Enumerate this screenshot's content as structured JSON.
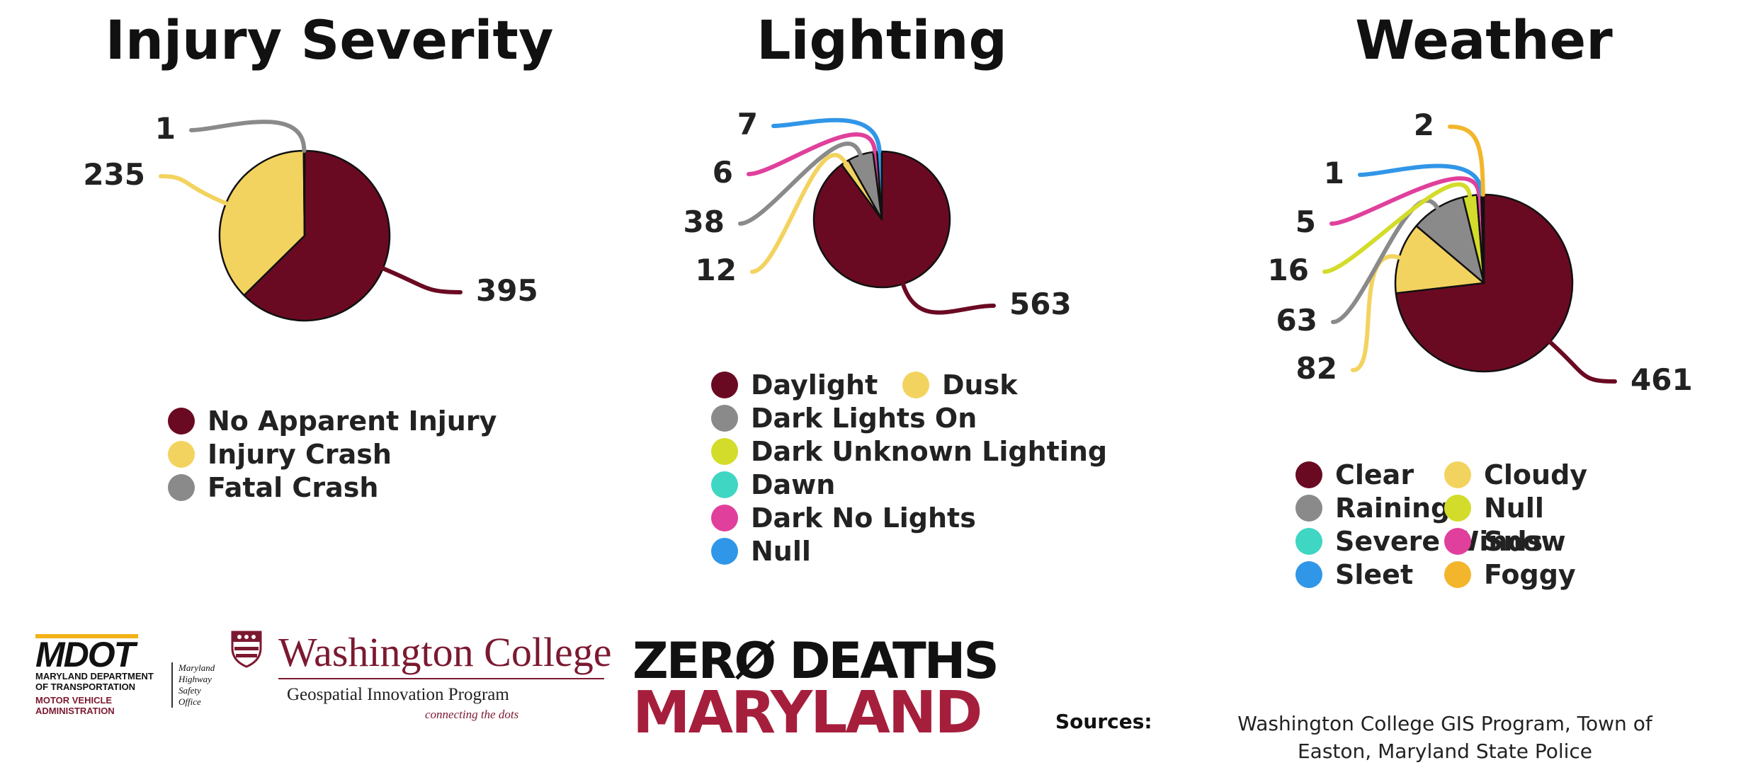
{
  "chart_data": [
    {
      "type": "pie",
      "title": "Injury Severity",
      "categories": [
        "No Apparent Injury",
        "Injury Crash",
        "Fatal Crash"
      ],
      "values": [
        395,
        235,
        1
      ],
      "data_labels": [
        "395",
        "235",
        "1"
      ],
      "colors": [
        "#6a0a22",
        "#f3d35f",
        "#8a8a8a"
      ],
      "legend": {
        "placement": "bottom",
        "columns": 1
      }
    },
    {
      "type": "pie",
      "title": "Lighting",
      "categories": [
        "Daylight",
        "Dusk",
        "Dark Lights On",
        "Dark Unknown Lighting",
        "Dawn",
        "Dark No Lights",
        "Null"
      ],
      "values": [
        563,
        12,
        38,
        0,
        0,
        6,
        7
      ],
      "data_labels": [
        "563",
        "12",
        "38",
        "",
        "",
        "6",
        "7"
      ],
      "colors": [
        "#6a0a22",
        "#f3d35f",
        "#8a8a8a",
        "#d3dc2a",
        "#3fd6c3",
        "#e0409c",
        "#3096e8"
      ],
      "legend": {
        "placement": "bottom",
        "columns": 2
      }
    },
    {
      "type": "pie",
      "title": "Weather",
      "categories": [
        "Clear",
        "Cloudy",
        "Raining",
        "Null",
        "Severe Winds",
        "Snow",
        "Sleet",
        "Foggy"
      ],
      "values": [
        461,
        82,
        63,
        16,
        0,
        5,
        1,
        2
      ],
      "data_labels": [
        "461",
        "82",
        "63",
        "16",
        "",
        "5",
        "1",
        "2"
      ],
      "colors": [
        "#6a0a22",
        "#f3d35f",
        "#8a8a8a",
        "#d3dc2a",
        "#3fd6c3",
        "#e0409c",
        "#3096e8",
        "#f2b52c"
      ],
      "legend": {
        "placement": "bottom",
        "columns": 2
      }
    }
  ],
  "footer": {
    "sources_label": "Sources:",
    "sources_text": "Washington College GIS Program, Town of Easton, Maryland State Police",
    "logos": {
      "mdot_mark": "MDOT",
      "mdot_line1": "MARYLAND DEPARTMENT",
      "mdot_line2": "OF TRANSPORTATION",
      "mdot_mva1": "MOTOR VEHICLE",
      "mdot_mva2": "ADMINISTRATION",
      "mhso1": "Maryland",
      "mhso2": "Highway",
      "mhso3": "Safety",
      "mhso4": "Office",
      "wc_name": "Washington College",
      "wc_program": "Geospatial Innovation Program",
      "wc_tagline": "connecting the dots",
      "zd_top": "ZERØ DEATHS",
      "zd_bottom": "MARYLAND"
    }
  }
}
